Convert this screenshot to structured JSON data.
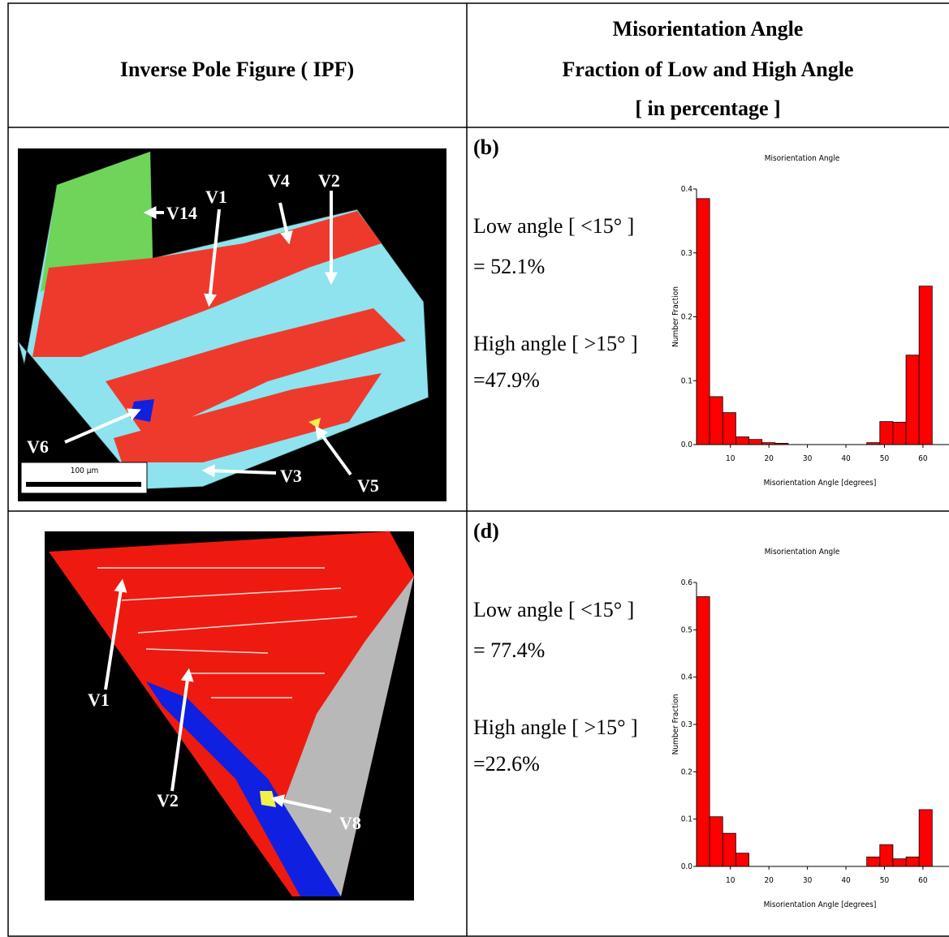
{
  "table": {
    "header": [
      "Inverse Pole Figure ( IPF)",
      [
        "Misorientation Angle",
        "Fraction of Low and High Angle",
        "[ in percentage ]"
      ]
    ],
    "rows": [
      {
        "image": {
          "labels": [
            "V14",
            "V1",
            "V4",
            "V2",
            "V6",
            "V3",
            "V5"
          ],
          "scale_bar": "100 µm"
        },
        "panel": "(b)",
        "low_label": "Low angle [ <15°  ]",
        "low_value": "= 52.1%",
        "high_label": "High angle [ >15° ]",
        "high_value": "=47.9%",
        "chart": {
          "type": "histogram",
          "title": "Misorientation Angle",
          "x_label": "Misorientation Angle [degrees]",
          "y_label": "Number Fraction",
          "bins": [
            1.2,
            4.6,
            8,
            11.4,
            14.8,
            18.2,
            21.6,
            25,
            28.4,
            31.8,
            35.2,
            38.6,
            42,
            45.4,
            48.8,
            52.2,
            55.6,
            59,
            62.4
          ],
          "counts": [
            0.385,
            0.075,
            0.05,
            0.012,
            0.008,
            0.003,
            0.002,
            0,
            0,
            0,
            0,
            0,
            0,
            0.003,
            0.036,
            0.035,
            0.14,
            0.248
          ],
          "color": "#ff0000",
          "xlim": [
            1.2,
            65.5
          ],
          "ylim": [
            0,
            0.4
          ],
          "xticks": [
            10,
            20,
            30,
            40,
            50,
            60
          ],
          "yticks": [
            {
              "value": 0,
              "label": "0.0"
            },
            0.1,
            0.2,
            0.3,
            0.4
          ]
        }
      },
      {
        "image": {
          "labels": [
            "V1",
            "V2",
            "V8"
          ]
        },
        "panel": "(d)",
        "low_label": "Low angle [ <15°  ]",
        "low_value": "= 77.4%",
        "high_label": "High angle [ >15° ]",
        "high_value": "=22.6%",
        "chart": {
          "type": "histogram",
          "title": "Misorientation Angle",
          "x_label": "Misorientation Angle [degrees]",
          "y_label": "Number Fraction",
          "bins": [
            1.2,
            4.6,
            8,
            11.4,
            14.8,
            18.2,
            21.6,
            25,
            28.4,
            31.8,
            35.2,
            38.6,
            42,
            45.4,
            48.8,
            52.2,
            55.6,
            59,
            62.4
          ],
          "counts": [
            0.57,
            0.105,
            0.07,
            0.028,
            0,
            0,
            0,
            0,
            0,
            0,
            0,
            0,
            0,
            0.02,
            0.046,
            0.016,
            0.02,
            0.12
          ],
          "color": "#ff0000",
          "xlim": [
            1.2,
            65.5
          ],
          "ylim": [
            0,
            0.6
          ],
          "xticks": [
            10,
            20,
            30,
            40,
            50,
            60
          ],
          "yticks": [
            {
              "value": 0,
              "label": "0.0"
            },
            0.1,
            0.2,
            0.3,
            0.4,
            0.5,
            0.6
          ]
        }
      }
    ]
  }
}
